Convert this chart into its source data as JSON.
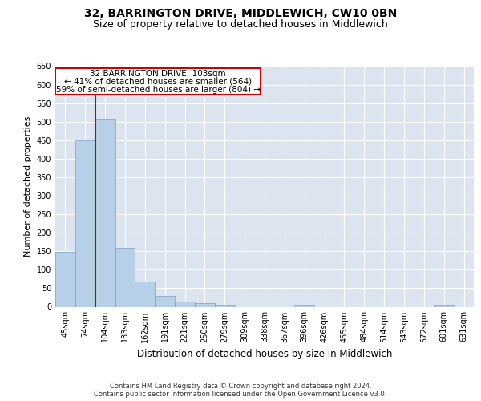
{
  "title": "32, BARRINGTON DRIVE, MIDDLEWICH, CW10 0BN",
  "subtitle": "Size of property relative to detached houses in Middlewich",
  "xlabel": "Distribution of detached houses by size in Middlewich",
  "ylabel": "Number of detached properties",
  "footer_line1": "Contains HM Land Registry data © Crown copyright and database right 2024.",
  "footer_line2": "Contains public sector information licensed under the Open Government Licence v3.0.",
  "categories": [
    "45sqm",
    "74sqm",
    "104sqm",
    "133sqm",
    "162sqm",
    "191sqm",
    "221sqm",
    "250sqm",
    "279sqm",
    "309sqm",
    "338sqm",
    "367sqm",
    "396sqm",
    "426sqm",
    "455sqm",
    "484sqm",
    "514sqm",
    "543sqm",
    "572sqm",
    "601sqm",
    "631sqm"
  ],
  "values": [
    148,
    449,
    507,
    160,
    68,
    30,
    14,
    9,
    5,
    0,
    0,
    0,
    6,
    0,
    0,
    0,
    0,
    0,
    0,
    6,
    0
  ],
  "bar_color": "#b8cfe8",
  "bar_edge_color": "#7aa0c4",
  "annotation_text_line1": "32 BARRINGTON DRIVE: 103sqm",
  "annotation_text_line2": "← 41% of detached houses are smaller (564)",
  "annotation_text_line3": "59% of semi-detached houses are larger (804) →",
  "vline_color": "#cc0000",
  "box_edge_color": "#cc0000",
  "ylim": [
    0,
    650
  ],
  "yticks": [
    0,
    50,
    100,
    150,
    200,
    250,
    300,
    350,
    400,
    450,
    500,
    550,
    600,
    650
  ],
  "background_color": "#dce4f0",
  "grid_color": "#ffffff",
  "title_fontsize": 10,
  "subtitle_fontsize": 9,
  "ylabel_fontsize": 8,
  "xlabel_fontsize": 8.5,
  "tick_fontsize": 7,
  "footer_fontsize": 6,
  "annot_fontsize": 7.5
}
